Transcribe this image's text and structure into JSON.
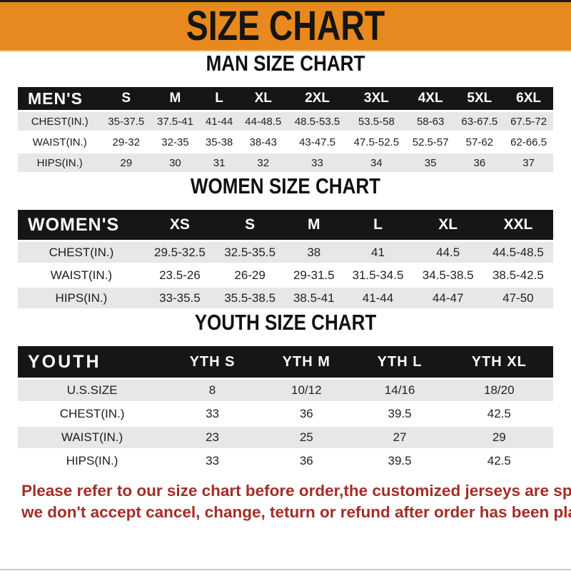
{
  "banner": {
    "title": "SIZE CHART"
  },
  "colors": {
    "banner_bg": "#E7891E",
    "band_bg": "#161616",
    "row_stripe": "#E7E7E7",
    "note_red": "#A42D27"
  },
  "sections": [
    {
      "heading": "MAN SIZE CHART",
      "label": "MEN'S",
      "columns": [
        "S",
        "M",
        "L",
        "XL",
        "2XL",
        "3XL",
        "4XL",
        "5XL",
        "6XL"
      ],
      "rows": [
        {
          "label": "CHEST(IN.)",
          "values": [
            "35-37.5",
            "37.5-41",
            "41-44",
            "44-48.5",
            "48.5-53.5",
            "53.5-58",
            "58-63",
            "63-67.5",
            "67.5-72"
          ]
        },
        {
          "label": "WAIST(IN.)",
          "values": [
            "29-32",
            "32-35",
            "35-38",
            "38-43",
            "43-47.5",
            "47.5-52.5",
            "52.5-57",
            "57-62",
            "62-66.5"
          ]
        },
        {
          "label": "HIPS(IN.)",
          "values": [
            "29",
            "30",
            "31",
            "32",
            "33",
            "34",
            "35",
            "36",
            "37"
          ]
        }
      ]
    },
    {
      "heading": "WOMEN SIZE CHART",
      "label": "WOMEN'S",
      "columns": [
        "XS",
        "S",
        "M",
        "L",
        "XL",
        "XXL"
      ],
      "rows": [
        {
          "label": "CHEST(IN.)",
          "values": [
            "29.5-32.5",
            "32.5-35.5",
            "38",
            "41",
            "44.5",
            "44.5-48.5"
          ]
        },
        {
          "label": "WAIST(IN.)",
          "values": [
            "23.5-26",
            "26-29",
            "29-31.5",
            "31.5-34.5",
            "34.5-38.5",
            "38.5-42.5"
          ]
        },
        {
          "label": "HIPS(IN.)",
          "values": [
            "33-35.5",
            "35.5-38.5",
            "38.5-41",
            "41-44",
            "44-47",
            "47-50"
          ]
        }
      ]
    },
    {
      "heading": "YOUTH SIZE CHART",
      "label": "YOUTH",
      "columns": [
        "YTH S",
        "YTH M",
        "YTH L",
        "YTH XL"
      ],
      "rows": [
        {
          "label": "U.S.SIZE",
          "values": [
            "8",
            "10/12",
            "14/16",
            "18/20"
          ]
        },
        {
          "label": "CHEST(IN.)",
          "values": [
            "33",
            "36",
            "39.5",
            "42.5"
          ]
        },
        {
          "label": "WAIST(IN.)",
          "values": [
            "23",
            "25",
            "27",
            "29"
          ]
        },
        {
          "label": "HIPS(IN.)",
          "values": [
            "33",
            "36",
            "39.5",
            "42.5"
          ]
        }
      ]
    }
  ],
  "footer": {
    "line1": "Please refer to our size chart before order,the customized jerseys are special products,",
    "line2": "we don't accept cancel, change, teturn or refund after order has been placed!"
  }
}
